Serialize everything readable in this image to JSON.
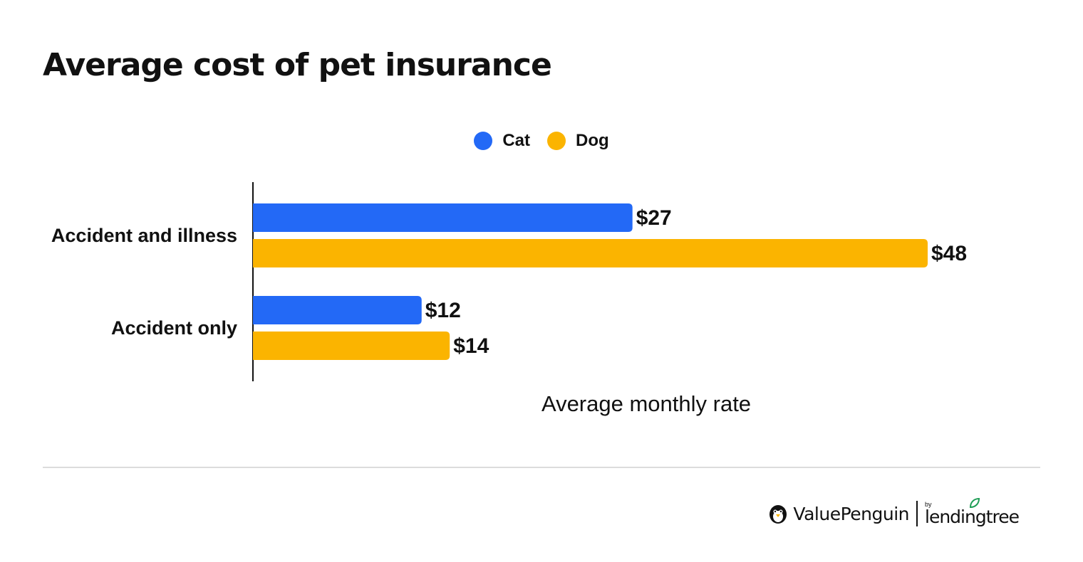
{
  "title": "Average cost of pet insurance",
  "colors": {
    "cat": "#2369f6",
    "dog": "#fbb400",
    "axis": "#111111",
    "divider": "#dcdcdc"
  },
  "chart_data": {
    "type": "bar",
    "orientation": "horizontal",
    "categories": [
      "Accident and illness",
      "Accident only"
    ],
    "series": [
      {
        "name": "Cat",
        "color": "#2369f6",
        "values": [
          27,
          12
        ],
        "labels": [
          "$27",
          "$12"
        ]
      },
      {
        "name": "Dog",
        "color": "#fbb400",
        "values": [
          48,
          14
        ],
        "labels": [
          "$48",
          "$14"
        ]
      }
    ],
    "xlabel": "Average monthly rate",
    "xlim": [
      0,
      48
    ],
    "legend_position": "top-center",
    "grid": false
  },
  "branding": {
    "primary": "ValuePenguin",
    "by": "by",
    "secondary": "lendingtree",
    "penguin_icon": "penguin-icon",
    "leaf_icon": "leaf-icon"
  }
}
